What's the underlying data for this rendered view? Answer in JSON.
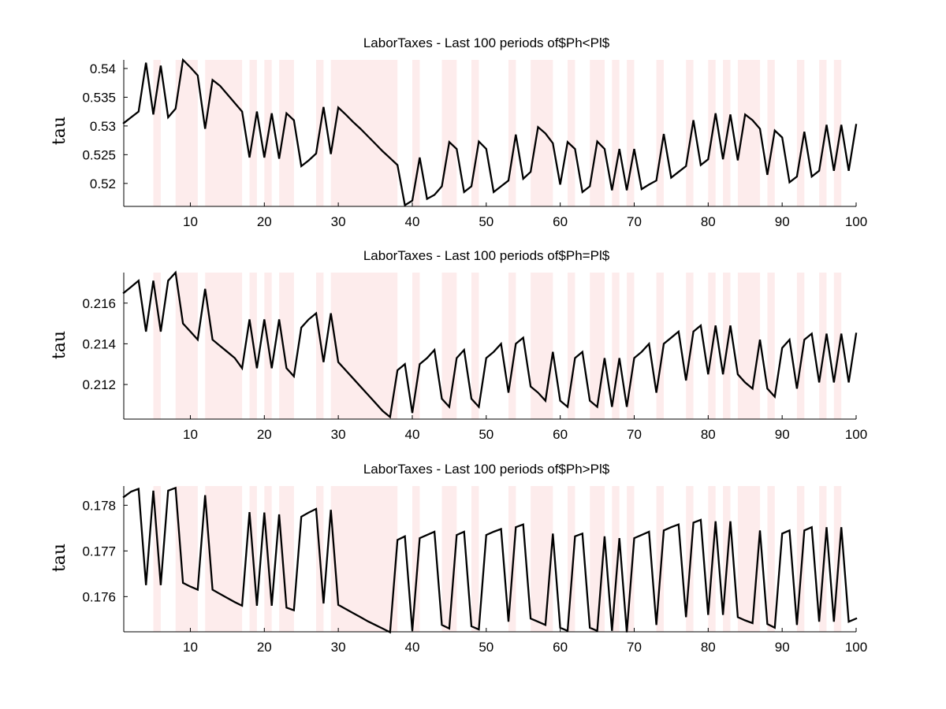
{
  "colors": {
    "line": "#000000",
    "shade": "#fdecec",
    "axis": "#000000"
  },
  "chart_data": [
    {
      "type": "line",
      "title": "LaborTaxes - Last 100 periods of$Ph<Pl$",
      "ylabel": "tau",
      "xlim": [
        1,
        100
      ],
      "ylim": [
        0.516,
        0.5415
      ],
      "xticks": [
        10,
        20,
        30,
        40,
        50,
        60,
        70,
        80,
        90,
        100
      ],
      "yticks": [
        0.52,
        0.525,
        0.53,
        0.535,
        0.54
      ],
      "ytick_labels": [
        "0.52",
        "0.525",
        "0.53",
        "0.535",
        "0.54"
      ],
      "shaded_periods": [
        [
          5,
          6
        ],
        [
          8,
          11
        ],
        [
          12,
          17
        ],
        [
          18,
          19
        ],
        [
          20,
          21
        ],
        [
          22,
          24
        ],
        [
          27,
          28
        ],
        [
          29,
          38
        ],
        [
          40,
          41
        ],
        [
          44,
          46
        ],
        [
          48,
          49
        ],
        [
          53,
          54
        ],
        [
          56,
          59
        ],
        [
          61,
          62
        ],
        [
          64,
          66
        ],
        [
          67,
          68
        ],
        [
          69,
          70
        ],
        [
          73,
          74
        ],
        [
          77,
          78
        ],
        [
          80,
          81
        ],
        [
          82,
          83
        ],
        [
          84,
          87
        ],
        [
          88,
          89
        ],
        [
          92,
          93
        ],
        [
          95,
          96
        ],
        [
          97,
          98
        ]
      ],
      "x": [
        1,
        2,
        3,
        4,
        5,
        6,
        7,
        8,
        9,
        10,
        11,
        12,
        13,
        14,
        15,
        16,
        17,
        18,
        19,
        20,
        21,
        22,
        23,
        24,
        25,
        26,
        27,
        28,
        29,
        30,
        31,
        32,
        33,
        34,
        35,
        36,
        37,
        38,
        39,
        40,
        41,
        42,
        43,
        44,
        45,
        46,
        47,
        48,
        49,
        50,
        51,
        52,
        53,
        54,
        55,
        56,
        57,
        58,
        59,
        60,
        61,
        62,
        63,
        64,
        65,
        66,
        67,
        68,
        69,
        70,
        71,
        72,
        73,
        74,
        75,
        76,
        77,
        78,
        79,
        80,
        81,
        82,
        83,
        84,
        85,
        86,
        87,
        88,
        89,
        90,
        91,
        92,
        93,
        94,
        95,
        96,
        97,
        98,
        99,
        100
      ],
      "series": [
        {
          "values": [
            0.5305,
            0.5315,
            0.5325,
            0.541,
            0.532,
            0.5405,
            0.5315,
            0.533,
            0.5415,
            0.5402,
            0.5388,
            0.5295,
            0.538,
            0.537,
            0.5355,
            0.534,
            0.5325,
            0.5245,
            0.5325,
            0.5245,
            0.5322,
            0.5243,
            0.5322,
            0.531,
            0.523,
            0.524,
            0.5252,
            0.5333,
            0.5251,
            0.5332,
            0.532,
            0.5307,
            0.5295,
            0.5282,
            0.5269,
            0.5256,
            0.5244,
            0.5232,
            0.5162,
            0.517,
            0.5245,
            0.5173,
            0.518,
            0.5195,
            0.5272,
            0.526,
            0.5185,
            0.5195,
            0.5273,
            0.526,
            0.5185,
            0.5195,
            0.5205,
            0.5285,
            0.5208,
            0.522,
            0.5298,
            0.5287,
            0.527,
            0.5198,
            0.5272,
            0.526,
            0.5185,
            0.5195,
            0.5273,
            0.526,
            0.5188,
            0.526,
            0.5188,
            0.526,
            0.519,
            0.5198,
            0.5205,
            0.5286,
            0.521,
            0.522,
            0.523,
            0.531,
            0.5232,
            0.5242,
            0.5322,
            0.5242,
            0.532,
            0.524,
            0.532,
            0.531,
            0.5295,
            0.5215,
            0.5292,
            0.528,
            0.5202,
            0.5212,
            0.529,
            0.5212,
            0.5222,
            0.5302,
            0.5222,
            0.5302,
            0.5222,
            0.5302
          ]
        }
      ]
    },
    {
      "type": "line",
      "title": "LaborTaxes - Last 100 periods of$Ph=Pl$",
      "ylabel": "tau",
      "xlim": [
        1,
        100
      ],
      "ylim": [
        0.2103,
        0.2175
      ],
      "xticks": [
        10,
        20,
        30,
        40,
        50,
        60,
        70,
        80,
        90,
        100
      ],
      "yticks": [
        0.212,
        0.214,
        0.216
      ],
      "ytick_labels": [
        "0.212",
        "0.214",
        "0.216"
      ],
      "shaded_periods": [
        [
          5,
          6
        ],
        [
          8,
          11
        ],
        [
          12,
          17
        ],
        [
          18,
          19
        ],
        [
          20,
          21
        ],
        [
          22,
          24
        ],
        [
          27,
          28
        ],
        [
          29,
          38
        ],
        [
          40,
          41
        ],
        [
          44,
          46
        ],
        [
          48,
          49
        ],
        [
          53,
          54
        ],
        [
          56,
          59
        ],
        [
          61,
          62
        ],
        [
          64,
          66
        ],
        [
          67,
          68
        ],
        [
          69,
          70
        ],
        [
          73,
          74
        ],
        [
          77,
          78
        ],
        [
          80,
          81
        ],
        [
          82,
          83
        ],
        [
          84,
          87
        ],
        [
          88,
          89
        ],
        [
          92,
          93
        ],
        [
          95,
          96
        ],
        [
          97,
          98
        ]
      ],
      "x": [
        1,
        2,
        3,
        4,
        5,
        6,
        7,
        8,
        9,
        10,
        11,
        12,
        13,
        14,
        15,
        16,
        17,
        18,
        19,
        20,
        21,
        22,
        23,
        24,
        25,
        26,
        27,
        28,
        29,
        30,
        31,
        32,
        33,
        34,
        35,
        36,
        37,
        38,
        39,
        40,
        41,
        42,
        43,
        44,
        45,
        46,
        47,
        48,
        49,
        50,
        51,
        52,
        53,
        54,
        55,
        56,
        57,
        58,
        59,
        60,
        61,
        62,
        63,
        64,
        65,
        66,
        67,
        68,
        69,
        70,
        71,
        72,
        73,
        74,
        75,
        76,
        77,
        78,
        79,
        80,
        81,
        82,
        83,
        84,
        85,
        86,
        87,
        88,
        89,
        90,
        91,
        92,
        93,
        94,
        95,
        96,
        97,
        98,
        99,
        100
      ],
      "series": [
        {
          "values": [
            0.2165,
            0.2168,
            0.2171,
            0.2146,
            0.2171,
            0.2146,
            0.2171,
            0.2175,
            0.215,
            0.2146,
            0.2142,
            0.2167,
            0.2142,
            0.2139,
            0.2136,
            0.2133,
            0.2128,
            0.2152,
            0.2128,
            0.2152,
            0.2128,
            0.2152,
            0.2128,
            0.2124,
            0.2148,
            0.2152,
            0.2155,
            0.2131,
            0.2155,
            0.2131,
            0.2127,
            0.2123,
            0.2119,
            0.2115,
            0.2111,
            0.2107,
            0.2104,
            0.2127,
            0.213,
            0.2106,
            0.213,
            0.2133,
            0.2137,
            0.2113,
            0.2109,
            0.2133,
            0.2137,
            0.2113,
            0.2109,
            0.2133,
            0.2136,
            0.214,
            0.2116,
            0.214,
            0.2143,
            0.2119,
            0.2116,
            0.2112,
            0.2136,
            0.2112,
            0.2109,
            0.2133,
            0.2136,
            0.2112,
            0.2109,
            0.2133,
            0.2109,
            0.2133,
            0.2109,
            0.2133,
            0.2136,
            0.214,
            0.2116,
            0.214,
            0.2143,
            0.2146,
            0.2122,
            0.2146,
            0.2149,
            0.2125,
            0.2149,
            0.2125,
            0.2149,
            0.2125,
            0.2121,
            0.2118,
            0.2142,
            0.2118,
            0.2114,
            0.2138,
            0.2142,
            0.2118,
            0.2142,
            0.2145,
            0.2121,
            0.2145,
            0.2121,
            0.2145,
            0.2121,
            0.2145
          ]
        }
      ]
    },
    {
      "type": "line",
      "title": "LaborTaxes - Last 100 periods of$Ph>Pl$",
      "ylabel": "tau",
      "xlim": [
        1,
        100
      ],
      "ylim": [
        0.17523,
        0.17842
      ],
      "xticks": [
        10,
        20,
        30,
        40,
        50,
        60,
        70,
        80,
        90,
        100
      ],
      "yticks": [
        0.176,
        0.177,
        0.178
      ],
      "ytick_labels": [
        "0.176",
        "0.177",
        "0.178"
      ],
      "shaded_periods": [
        [
          5,
          6
        ],
        [
          8,
          11
        ],
        [
          12,
          17
        ],
        [
          18,
          19
        ],
        [
          20,
          21
        ],
        [
          22,
          24
        ],
        [
          27,
          28
        ],
        [
          29,
          38
        ],
        [
          40,
          41
        ],
        [
          44,
          46
        ],
        [
          48,
          49
        ],
        [
          53,
          54
        ],
        [
          56,
          59
        ],
        [
          61,
          62
        ],
        [
          64,
          66
        ],
        [
          67,
          68
        ],
        [
          69,
          70
        ],
        [
          73,
          74
        ],
        [
          77,
          78
        ],
        [
          80,
          81
        ],
        [
          82,
          83
        ],
        [
          84,
          87
        ],
        [
          88,
          89
        ],
        [
          92,
          93
        ],
        [
          95,
          96
        ],
        [
          97,
          98
        ]
      ],
      "x": [
        1,
        2,
        3,
        4,
        5,
        6,
        7,
        8,
        9,
        10,
        11,
        12,
        13,
        14,
        15,
        16,
        17,
        18,
        19,
        20,
        21,
        22,
        23,
        24,
        25,
        26,
        27,
        28,
        29,
        30,
        31,
        32,
        33,
        34,
        35,
        36,
        37,
        38,
        39,
        40,
        41,
        42,
        43,
        44,
        45,
        46,
        47,
        48,
        49,
        50,
        51,
        52,
        53,
        54,
        55,
        56,
        57,
        58,
        59,
        60,
        61,
        62,
        63,
        64,
        65,
        66,
        67,
        68,
        69,
        70,
        71,
        72,
        73,
        74,
        75,
        76,
        77,
        78,
        79,
        80,
        81,
        82,
        83,
        84,
        85,
        86,
        87,
        88,
        89,
        90,
        91,
        92,
        93,
        94,
        95,
        96,
        97,
        98,
        99,
        100
      ],
      "series": [
        {
          "values": [
            0.17818,
            0.1783,
            0.17836,
            0.17625,
            0.17832,
            0.17625,
            0.17832,
            0.17838,
            0.1763,
            0.17622,
            0.17615,
            0.17822,
            0.17615,
            0.17606,
            0.17597,
            0.17588,
            0.1758,
            0.17785,
            0.1758,
            0.17784,
            0.1758,
            0.1778,
            0.17576,
            0.1757,
            0.17775,
            0.17784,
            0.17792,
            0.17585,
            0.1779,
            0.17582,
            0.17573,
            0.17564,
            0.17555,
            0.17546,
            0.17538,
            0.1753,
            0.17522,
            0.17724,
            0.17732,
            0.17525,
            0.17728,
            0.17735,
            0.17742,
            0.17538,
            0.1753,
            0.17735,
            0.17742,
            0.17535,
            0.17528,
            0.17735,
            0.17742,
            0.17748,
            0.17545,
            0.17752,
            0.17758,
            0.17552,
            0.17545,
            0.17538,
            0.17738,
            0.17532,
            0.17525,
            0.17732,
            0.17738,
            0.17532,
            0.17525,
            0.17732,
            0.17525,
            0.17728,
            0.17522,
            0.17728,
            0.17735,
            0.17742,
            0.17538,
            0.17745,
            0.17752,
            0.17758,
            0.17555,
            0.17762,
            0.17768,
            0.1756,
            0.17765,
            0.1756,
            0.17765,
            0.17555,
            0.17548,
            0.17542,
            0.17745,
            0.1754,
            0.17532,
            0.17738,
            0.17745,
            0.17538,
            0.17745,
            0.17752,
            0.17545,
            0.17752,
            0.17545,
            0.17752,
            0.17545,
            0.17552
          ]
        }
      ]
    }
  ]
}
